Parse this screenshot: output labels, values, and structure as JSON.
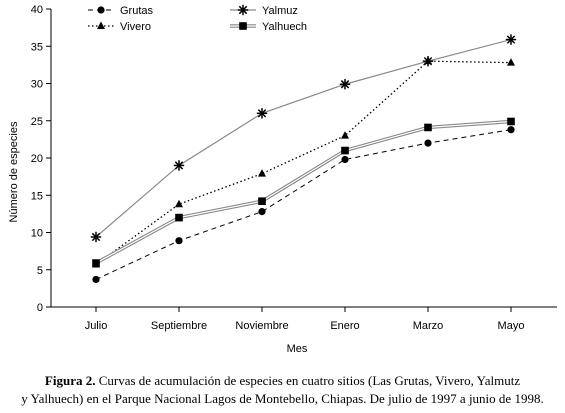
{
  "chart_data": {
    "type": "line",
    "categories": [
      "Julio",
      "Septiembre",
      "Noviembre",
      "Enero",
      "Marzo",
      "Mayo"
    ],
    "series": [
      {
        "name": "Grutas",
        "values": [
          3.7,
          8.9,
          12.8,
          19.8,
          22.0,
          23.8
        ],
        "line_style": "dashed",
        "marker": "circle",
        "color": "#000000"
      },
      {
        "name": "Vivero",
        "values": [
          5.7,
          13.8,
          17.9,
          23.0,
          33.0,
          32.8
        ],
        "line_style": "dotted",
        "marker": "triangle",
        "color": "#000000"
      },
      {
        "name": "Yalmuz",
        "values": [
          9.4,
          19.0,
          26.0,
          29.9,
          33.0,
          35.9
        ],
        "line_style": "solid",
        "marker": "asterisk",
        "color": "#888888"
      },
      {
        "name": "Yalhuech",
        "values": [
          5.9,
          12.0,
          14.2,
          21.0,
          24.1,
          24.9
        ],
        "line_style": "double",
        "marker": "square",
        "color": "#888888"
      }
    ],
    "ylim": [
      0,
      40
    ],
    "yticks": [
      0,
      5,
      10,
      15,
      20,
      25,
      30,
      35,
      40
    ],
    "xlabel": "Mes",
    "ylabel": "Número de especies",
    "legend_position": "top-center",
    "grid": false
  },
  "caption": {
    "label": "Figura 2.",
    "line1": " Curvas de acumulación de especies en cuatro sitios (Las Grutas, Vivero, Yalmutz",
    "line2": "y Yalhuech) en el Parque Nacional Lagos de Montebello, Chiapas. De julio de 1997 a junio de 1998."
  }
}
